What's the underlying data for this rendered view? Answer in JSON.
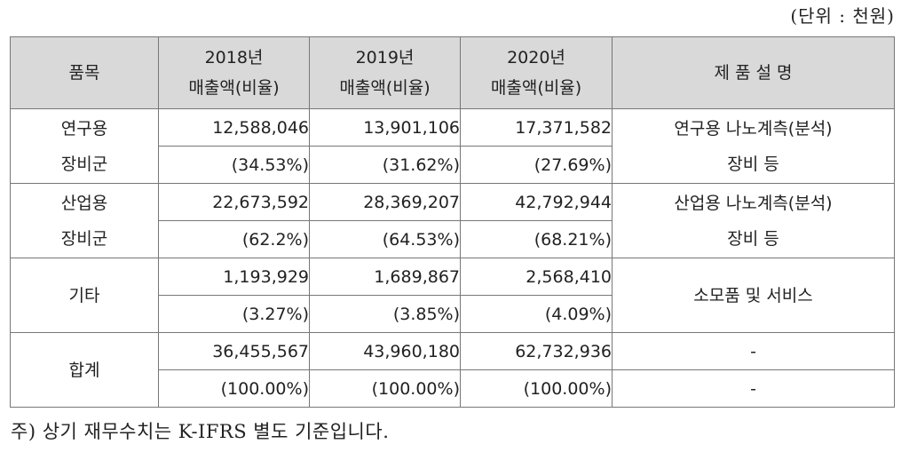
{
  "unit_label": "(단위 : 천원)",
  "headers": {
    "item": "품목",
    "y2018_year": "2018년",
    "y2018_sub": "매출액(비율)",
    "y2019_year": "2019년",
    "y2019_sub": "매출액(비율)",
    "y2020_year": "2020년",
    "y2020_sub": "매출액(비율)",
    "desc": "제 품 설 명"
  },
  "rows": [
    {
      "cat1": "연구용",
      "cat2": "장비군",
      "v2018": "12,588,046",
      "p2018": "(34.53%)",
      "v2019": "13,901,106",
      "p2019": "(31.62%)",
      "v2020": "17,371,582",
      "p2020": "(27.69%)",
      "desc1": "연구용 나노계측(분석)",
      "desc2": "장비 등"
    },
    {
      "cat1": "산업용",
      "cat2": "장비군",
      "v2018": "22,673,592",
      "p2018": "(62.2%)",
      "v2019": "28,369,207",
      "p2019": "(64.53%)",
      "v2020": "42,792,944",
      "p2020": "(68.21%)",
      "desc1": "산업용 나노계측(분석)",
      "desc2": "장비 등"
    },
    {
      "cat": "기타",
      "v2018": "1,193,929",
      "p2018": "(3.27%)",
      "v2019": "1,689,867",
      "p2019": "(3.85%)",
      "v2020": "2,568,410",
      "p2020": "(4.09%)",
      "desc": "소모품 및 서비스"
    },
    {
      "cat": "합계",
      "v2018": "36,455,567",
      "p2018": "(100.00%)",
      "v2019": "43,960,180",
      "p2019": "(100.00%)",
      "v2020": "62,732,936",
      "p2020": "(100.00%)",
      "desc_top": "-",
      "desc_bottom": "-"
    }
  ],
  "note": "주) 상기 재무수치는 K-IFRS 별도 기준입니다."
}
